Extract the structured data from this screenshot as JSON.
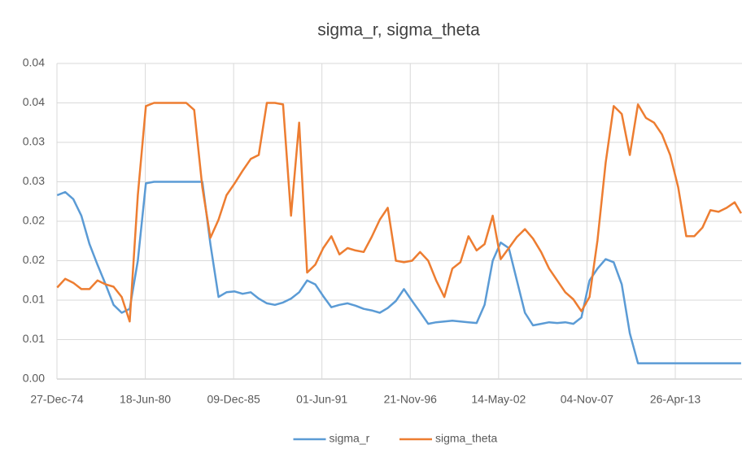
{
  "chart_data": {
    "type": "line",
    "title": "sigma_r, sigma_theta",
    "x": [
      "1975-01-01",
      "1975-07-01",
      "1976-01-01",
      "1976-07-01",
      "1977-01-01",
      "1977-07-01",
      "1978-01-01",
      "1978-07-01",
      "1979-01-01",
      "1979-07-01",
      "1980-01-01",
      "1980-07-01",
      "1981-01-01",
      "1981-07-01",
      "1982-01-01",
      "1982-07-01",
      "1983-01-01",
      "1983-07-01",
      "1984-01-01",
      "1984-07-01",
      "1985-01-01",
      "1985-07-01",
      "1986-01-01",
      "1986-07-01",
      "1987-01-01",
      "1987-07-01",
      "1988-01-01",
      "1988-07-01",
      "1989-01-01",
      "1989-07-01",
      "1990-01-01",
      "1990-07-01",
      "1991-01-01",
      "1991-07-01",
      "1992-01-01",
      "1992-07-01",
      "1993-01-01",
      "1993-07-01",
      "1994-01-01",
      "1994-07-01",
      "1995-01-01",
      "1995-07-01",
      "1996-01-01",
      "1996-07-01",
      "1997-01-01",
      "1997-07-01",
      "1998-01-01",
      "1998-07-01",
      "1999-01-01",
      "1999-07-01",
      "2000-01-01",
      "2000-07-01",
      "2001-01-01",
      "2001-07-01",
      "2002-01-01",
      "2002-07-01",
      "2003-01-01",
      "2003-07-01",
      "2004-01-01",
      "2004-07-01",
      "2005-01-01",
      "2005-07-01",
      "2006-01-01",
      "2006-07-01",
      "2007-01-01",
      "2007-07-01",
      "2008-01-01",
      "2008-07-01",
      "2009-01-01",
      "2009-07-01",
      "2010-01-01",
      "2010-07-01",
      "2011-01-01",
      "2011-07-01",
      "2012-01-01",
      "2012-07-01",
      "2013-01-01",
      "2013-07-01",
      "2014-01-01",
      "2014-07-01",
      "2015-01-01",
      "2015-07-01",
      "2016-01-01",
      "2016-07-01",
      "2017-01-01",
      "2017-05-25"
    ],
    "series": [
      {
        "name": "sigma_r",
        "color": "#5b9bd5",
        "values": [
          0.0233,
          0.0237,
          0.0228,
          0.0207,
          0.0171,
          0.0145,
          0.012,
          0.0094,
          0.0084,
          0.0089,
          0.015,
          0.0248,
          0.025,
          0.025,
          0.025,
          0.025,
          0.025,
          0.025,
          0.025,
          0.0171,
          0.0104,
          0.011,
          0.0111,
          0.0108,
          0.011,
          0.0102,
          0.0096,
          0.0094,
          0.0097,
          0.0102,
          0.011,
          0.0125,
          0.012,
          0.0105,
          0.0091,
          0.0094,
          0.0096,
          0.0093,
          0.0089,
          0.0087,
          0.0084,
          0.009,
          0.0099,
          0.0114,
          0.0099,
          0.0085,
          0.007,
          0.0072,
          0.0073,
          0.0074,
          0.0073,
          0.0072,
          0.0071,
          0.0094,
          0.015,
          0.0173,
          0.0166,
          0.0125,
          0.0084,
          0.0068,
          0.007,
          0.0072,
          0.0071,
          0.0072,
          0.007,
          0.0078,
          0.0125,
          0.014,
          0.0152,
          0.0148,
          0.012,
          0.0058,
          0.002,
          0.002,
          0.002,
          0.002,
          0.002,
          0.002,
          0.002,
          0.002,
          0.002,
          0.002,
          0.002,
          0.002,
          0.002,
          0.002
        ]
      },
      {
        "name": "sigma_theta",
        "color": "#ed7d31",
        "values": [
          0.0116,
          0.0127,
          0.0122,
          0.0114,
          0.0114,
          0.0125,
          0.012,
          0.0117,
          0.0104,
          0.0073,
          0.0233,
          0.0346,
          0.035,
          0.035,
          0.035,
          0.035,
          0.035,
          0.0341,
          0.0243,
          0.0179,
          0.0202,
          0.0233,
          0.0248,
          0.0264,
          0.0279,
          0.0284,
          0.035,
          0.035,
          0.0348,
          0.0207,
          0.0325,
          0.0135,
          0.0145,
          0.0166,
          0.0181,
          0.0158,
          0.0166,
          0.0163,
          0.0161,
          0.018,
          0.0202,
          0.0217,
          0.015,
          0.0148,
          0.015,
          0.0161,
          0.015,
          0.0125,
          0.0104,
          0.014,
          0.0148,
          0.0181,
          0.0163,
          0.0171,
          0.0207,
          0.0152,
          0.0166,
          0.018,
          0.019,
          0.0178,
          0.0161,
          0.014,
          0.0125,
          0.011,
          0.0101,
          0.0086,
          0.0104,
          0.0176,
          0.0274,
          0.0346,
          0.0336,
          0.0284,
          0.0348,
          0.0331,
          0.0325,
          0.031,
          0.0284,
          0.0243,
          0.0181,
          0.0181,
          0.0192,
          0.0214,
          0.0212,
          0.0217,
          0.0224,
          0.021
        ]
      }
    ],
    "xlim": [
      "1974-12-27",
      "2017-06-15"
    ],
    "xticks": [
      {
        "value": "1974-12-27",
        "label": "27-Dec-74"
      },
      {
        "value": "1980-06-18",
        "label": "18-Jun-80"
      },
      {
        "value": "1985-12-09",
        "label": "09-Dec-85"
      },
      {
        "value": "1991-06-01",
        "label": "01-Jun-91"
      },
      {
        "value": "1996-11-21",
        "label": "21-Nov-96"
      },
      {
        "value": "2002-05-14",
        "label": "14-May-02"
      },
      {
        "value": "2007-11-04",
        "label": "04-Nov-07"
      },
      {
        "value": "2013-04-26",
        "label": "26-Apr-13"
      }
    ],
    "ylim": [
      0,
      0.04
    ],
    "yticks": [
      {
        "value": 0,
        "label": "0.00"
      },
      {
        "value": 0.005,
        "label": "0.01"
      },
      {
        "value": 0.01,
        "label": "0.01"
      },
      {
        "value": 0.015,
        "label": "0.02"
      },
      {
        "value": 0.02,
        "label": "0.02"
      },
      {
        "value": 0.025,
        "label": "0.03"
      },
      {
        "value": 0.03,
        "label": "0.03"
      },
      {
        "value": 0.035,
        "label": "0.04"
      },
      {
        "value": 0.04,
        "label": "0.04"
      }
    ],
    "grid": true,
    "legend": "bottom"
  }
}
